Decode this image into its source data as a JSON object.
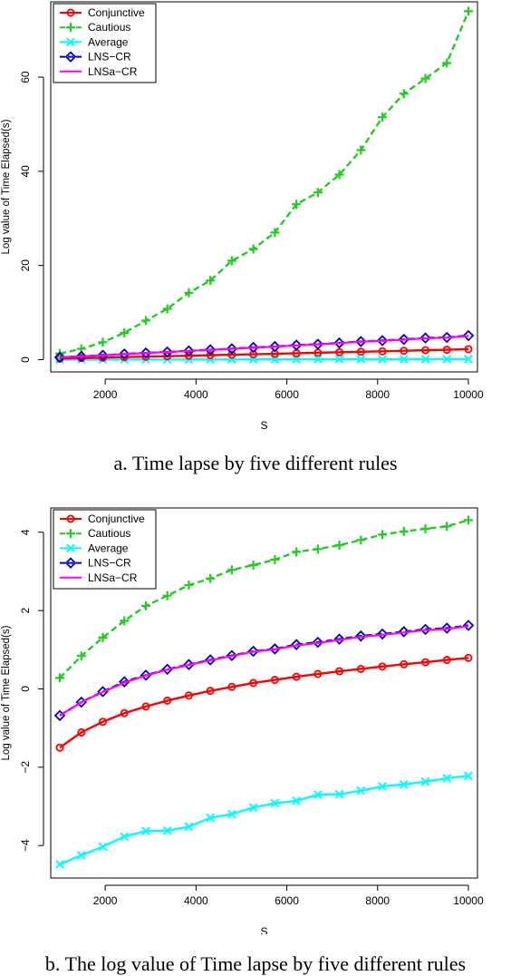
{
  "captions": {
    "a": "a. Time lapse by five different rules",
    "b": "b. The log value of Time lapse by five different rules"
  },
  "colors": {
    "conjunctive": "#ff0000",
    "cautious": "#22cc22",
    "average": "#00ffff",
    "lns_cr": "#0000cc",
    "lnsa_cr": "#ff00ff"
  },
  "chart_data": [
    {
      "type": "line",
      "title": "",
      "xlabel": "S",
      "ylabel": "Log value of Time Elapsed(s)",
      "xlim": [
        800,
        10200
      ],
      "ylim": [
        -2.6,
        76
      ],
      "xticks": [
        2000,
        4000,
        6000,
        8000,
        10000
      ],
      "yticks": [
        0,
        20,
        40,
        60
      ],
      "legend": "top-left",
      "x": [
        1000,
        1474,
        1947,
        2421,
        2895,
        3368,
        3842,
        4316,
        4789,
        5263,
        5737,
        6211,
        6684,
        7158,
        7632,
        8105,
        8579,
        9053,
        9526,
        10000
      ],
      "series": [
        {
          "name": "Conjunctive",
          "color_key": "conjunctive",
          "marker": "circle",
          "dash": false,
          "values": [
            0.22,
            0.33,
            0.43,
            0.54,
            0.63,
            0.74,
            0.84,
            0.94,
            1.05,
            1.15,
            1.25,
            1.36,
            1.47,
            1.57,
            1.68,
            1.78,
            1.89,
            2.0,
            2.1,
            2.22
          ]
        },
        {
          "name": "Cautious",
          "color_key": "cautious",
          "marker": "plus",
          "dash": true,
          "values": [
            1.3,
            2.3,
            3.7,
            5.7,
            8.3,
            10.8,
            14.2,
            16.8,
            21.0,
            23.5,
            27.0,
            33.0,
            35.5,
            39.3,
            44.5,
            51.5,
            56.5,
            59.7,
            63.0,
            74.0
          ]
        },
        {
          "name": "Average",
          "color_key": "average",
          "marker": "x",
          "dash": false,
          "values": [
            0.01,
            0.02,
            0.02,
            0.02,
            0.03,
            0.03,
            0.03,
            0.04,
            0.04,
            0.05,
            0.05,
            0.06,
            0.07,
            0.07,
            0.08,
            0.08,
            0.09,
            0.09,
            0.1,
            0.11
          ]
        },
        {
          "name": "LNS−CR",
          "color_key": "lns_cr",
          "marker": "diamond",
          "dash": true,
          "values": [
            0.5,
            0.7,
            0.93,
            1.2,
            1.42,
            1.64,
            1.86,
            2.1,
            2.32,
            2.6,
            2.78,
            3.08,
            3.28,
            3.55,
            3.85,
            4.05,
            4.3,
            4.6,
            4.72,
            5.1
          ]
        },
        {
          "name": "LNSa−CR",
          "color_key": "lnsa_cr",
          "marker": "none",
          "dash": false,
          "values": [
            0.5,
            0.7,
            0.92,
            1.18,
            1.4,
            1.62,
            1.84,
            2.08,
            2.3,
            2.55,
            2.75,
            3.02,
            3.25,
            3.5,
            3.8,
            4.0,
            4.25,
            4.52,
            4.68,
            5.0
          ]
        }
      ]
    },
    {
      "type": "line",
      "title": "",
      "xlabel": "S",
      "ylabel": "Log value of Time Elapsed(s)",
      "xlim": [
        800,
        10200
      ],
      "ylim": [
        -4.83,
        4.62
      ],
      "xticks": [
        2000,
        4000,
        6000,
        8000,
        10000
      ],
      "yticks": [
        -4,
        -2,
        0,
        2,
        4
      ],
      "legend": "top-left",
      "x": [
        1000,
        1474,
        1947,
        2421,
        2895,
        3368,
        3842,
        4316,
        4789,
        5263,
        5737,
        6211,
        6684,
        7158,
        7632,
        8105,
        8579,
        9053,
        9526,
        10000
      ],
      "series": [
        {
          "name": "Conjunctive",
          "color_key": "conjunctive",
          "marker": "circle",
          "dash": false,
          "values": [
            -1.5,
            -1.11,
            -0.84,
            -0.62,
            -0.45,
            -0.3,
            -0.17,
            -0.05,
            0.05,
            0.15,
            0.23,
            0.31,
            0.38,
            0.45,
            0.51,
            0.57,
            0.63,
            0.68,
            0.74,
            0.79
          ]
        },
        {
          "name": "Cautious",
          "color_key": "cautious",
          "marker": "plus",
          "dash": true,
          "values": [
            0.28,
            0.84,
            1.31,
            1.74,
            2.12,
            2.38,
            2.65,
            2.82,
            3.04,
            3.16,
            3.3,
            3.5,
            3.57,
            3.67,
            3.8,
            3.94,
            4.02,
            4.09,
            4.15,
            4.31
          ]
        },
        {
          "name": "Average",
          "color_key": "average",
          "marker": "x",
          "dash": false,
          "values": [
            -4.48,
            -4.25,
            -4.03,
            -3.77,
            -3.63,
            -3.62,
            -3.52,
            -3.29,
            -3.2,
            -3.03,
            -2.92,
            -2.86,
            -2.7,
            -2.69,
            -2.6,
            -2.49,
            -2.44,
            -2.37,
            -2.28,
            -2.22
          ]
        },
        {
          "name": "LNS−CR",
          "color_key": "lns_cr",
          "marker": "diamond",
          "dash": true,
          "values": [
            -0.68,
            -0.34,
            -0.07,
            0.18,
            0.35,
            0.5,
            0.62,
            0.74,
            0.85,
            0.96,
            1.02,
            1.13,
            1.19,
            1.27,
            1.35,
            1.4,
            1.46,
            1.52,
            1.55,
            1.62
          ]
        },
        {
          "name": "LNSa−CR",
          "color_key": "lnsa_cr",
          "marker": "none",
          "dash": false,
          "values": [
            -0.68,
            -0.34,
            -0.08,
            0.16,
            0.34,
            0.49,
            0.61,
            0.73,
            0.84,
            0.95,
            1.01,
            1.11,
            1.17,
            1.25,
            1.33,
            1.38,
            1.44,
            1.5,
            1.53,
            1.6
          ]
        }
      ]
    }
  ]
}
